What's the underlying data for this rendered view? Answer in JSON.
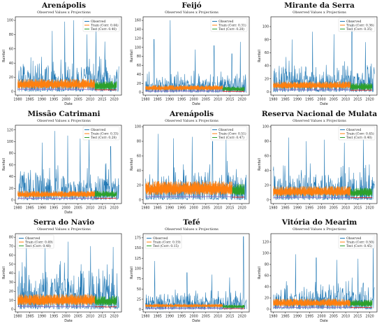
{
  "colors": {
    "observed": "#1f77b4",
    "train": "#ff7f0e",
    "test": "#2ca02c",
    "train_projection": "#9467bd",
    "test_projection": "#d62728"
  },
  "chart_data": [
    {
      "type": "line",
      "title": "Arenápolis",
      "subtitle": "Observed Values x Projections",
      "xlabel": "Date",
      "ylabel": "Rainfall",
      "xlim": [
        1979,
        2023
      ],
      "ylim": [
        -5,
        105
      ],
      "yticks": [
        0,
        20,
        40,
        60,
        80,
        100
      ],
      "xticks": [
        1980,
        1985,
        1990,
        1995,
        2000,
        2005,
        2010,
        2015,
        2020
      ],
      "xtick_labels": [
        "1980",
        "1985",
        "1990",
        "1995",
        "2000",
        "2005",
        "2010",
        "2015",
        "2020"
      ],
      "split_year": 2012,
      "end_year": 2021,
      "legend": [
        "Observed",
        "Train  (Corr: 0.44)",
        "Test  (Corr: 0.40)"
      ],
      "legend_position": "top-right",
      "series": [
        {
          "name": "Observed",
          "typical_peak": 40,
          "max_peaks": [
            [
              1999.5,
              98
            ],
            [
              2003.2,
              100
            ],
            [
              1994.3,
              85
            ],
            [
              2008.7,
              80
            ],
            [
              2012.4,
              90
            ],
            [
              2016.1,
              70
            ]
          ]
        },
        {
          "name": "Train",
          "x": [
            1980,
            2012
          ],
          "level": 8,
          "band": 10
        },
        {
          "name": "Test",
          "x": [
            2012,
            2021
          ],
          "level": 6,
          "band": 9
        }
      ]
    },
    {
      "type": "line",
      "title": "Feijó",
      "subtitle": "Observed Values x Projections",
      "xlabel": "Date",
      "ylabel": "Rainfall",
      "xlim": [
        1979,
        2023
      ],
      "ylim": [
        -6,
        168
      ],
      "yticks": [
        0,
        20,
        40,
        60,
        80,
        100,
        120,
        140,
        160
      ],
      "xticks": [
        1980,
        1985,
        1990,
        1995,
        2000,
        2005,
        2010,
        2015,
        2020
      ],
      "xtick_labels": [
        "1980",
        "1985",
        "1990",
        "1995",
        "2000",
        "2005",
        "2010",
        "2015",
        "2020"
      ],
      "split_year": 2012,
      "end_year": 2021,
      "legend": [
        "Observed",
        "Train  (Corr: 0.31)",
        "Test  (Corr: 0.28)"
      ],
      "legend_position": "top-right",
      "series": [
        {
          "name": "Observed",
          "typical_peak": 42,
          "max_peaks": [
            [
              1990.2,
              160
            ],
            [
              1983.5,
              118
            ],
            [
              2000.6,
              95
            ],
            [
              2008.4,
              104
            ],
            [
              2015.8,
              86
            ],
            [
              2019.3,
              112
            ]
          ]
        },
        {
          "name": "Train",
          "x": [
            1980,
            2012
          ],
          "level": 8,
          "band": 8
        },
        {
          "name": "Test",
          "x": [
            2012,
            2021
          ],
          "level": 6,
          "band": 7
        }
      ]
    },
    {
      "type": "line",
      "title": "Mirante da Serra",
      "subtitle": "Observed Values x Projections",
      "xlabel": "Date",
      "ylabel": "Rainfall",
      "xlim": [
        1979,
        2023
      ],
      "ylim": [
        -5,
        115
      ],
      "yticks": [
        0,
        20,
        40,
        60,
        80,
        100
      ],
      "xticks": [
        1980,
        1985,
        1990,
        1995,
        2000,
        2005,
        2010,
        2015,
        2020
      ],
      "xtick_labels": [
        "1980",
        "1985",
        "1990",
        "1995",
        "2000",
        "2005",
        "2010",
        "2015",
        "2020"
      ],
      "split_year": 2012,
      "end_year": 2021,
      "legend": [
        "Observed",
        "Train  (Corr: 0.36)",
        "Test  (Corr: 0.35)"
      ],
      "legend_position": "top-right",
      "series": [
        {
          "name": "Observed",
          "typical_peak": 42,
          "max_peaks": [
            [
              2012.6,
              110
            ],
            [
              1996.3,
              92
            ],
            [
              2005.1,
              88
            ],
            [
              1987.8,
              80
            ],
            [
              2018.2,
              76
            ]
          ]
        },
        {
          "name": "Train",
          "x": [
            1980,
            2012
          ],
          "level": 8,
          "band": 8
        },
        {
          "name": "Test",
          "x": [
            2012,
            2021
          ],
          "level": 6,
          "band": 8
        }
      ]
    },
    {
      "type": "line",
      "title": "Missão Catrimani",
      "subtitle": "Observed Values x Projections",
      "xlabel": "Date",
      "ylabel": "Rainfall",
      "xlim": [
        1979,
        2023
      ],
      "ylim": [
        -6,
        128
      ],
      "yticks": [
        0,
        20,
        40,
        60,
        80,
        100,
        120
      ],
      "xticks": [
        1980,
        1985,
        1990,
        1995,
        2000,
        2005,
        2010,
        2015,
        2020
      ],
      "xtick_labels": [
        "1980",
        "1985",
        "1990",
        "1995",
        "2000",
        "2005",
        "2010",
        "2015",
        "2020"
      ],
      "split_year": 2012,
      "end_year": 2021,
      "legend": [
        "Observed",
        "Train  (Corr: 0.33)",
        "Test  (Corr: 0.28)"
      ],
      "legend_position": "top-right",
      "series": [
        {
          "name": "Observed",
          "typical_peak": 50,
          "max_peaks": [
            [
              1995.4,
              118
            ],
            [
              2000.7,
              110
            ],
            [
              2005.9,
              105
            ],
            [
              2009.6,
              112
            ],
            [
              1990.1,
              98
            ],
            [
              2018.5,
              92
            ]
          ]
        },
        {
          "name": "Train",
          "x": [
            1980,
            2012
          ],
          "level": 8,
          "band": 8
        },
        {
          "name": "Test",
          "x": [
            2012,
            2021
          ],
          "level": 8,
          "band": 8
        }
      ]
    },
    {
      "type": "line",
      "title": "Arenápolis",
      "subtitle": "Observed Values x Projections",
      "xlabel": "",
      "ylabel": "Rainfall",
      "xlim": [
        1979,
        2023
      ],
      "ylim": [
        -5,
        102
      ],
      "yticks": [
        0,
        20,
        40,
        60,
        80,
        100
      ],
      "xticks": [
        1980,
        1985,
        1990,
        1995,
        2000,
        2005,
        2010,
        2015,
        2020
      ],
      "xtick_labels": [
        "1980",
        "1985",
        "1990",
        "1995",
        "2000",
        "2005",
        "2010",
        "2015",
        "2020"
      ],
      "split_year": 2016,
      "end_year": 2021,
      "legend": [
        "Observed",
        "Train  (Corr: 0.51)",
        "Test  (Corr: 0.47)"
      ],
      "legend_position": "top-right",
      "series": [
        {
          "name": "Observed",
          "typical_peak": 42,
          "max_peaks": [
            [
              1985.2,
              90
            ],
            [
              1991.6,
              84
            ],
            [
              1999.3,
              86
            ],
            [
              2007.8,
              80
            ],
            [
              2013.4,
              82
            ]
          ]
        },
        {
          "name": "Train",
          "x": [
            1980,
            2016
          ],
          "level": 12,
          "band": 14
        },
        {
          "name": "Test",
          "x": [
            2016,
            2021
          ],
          "level": 10,
          "band": 12
        }
      ]
    },
    {
      "type": "line",
      "title": "Reserva Nacional de Mulata",
      "subtitle": "Observed Values x Projections",
      "xlabel": "",
      "ylabel": "Rainfall",
      "xlim": [
        1979,
        2023
      ],
      "ylim": [
        -5,
        102
      ],
      "yticks": [
        0,
        20,
        40,
        60,
        80,
        100
      ],
      "xticks": [
        1980,
        1985,
        1990,
        1995,
        2000,
        2005,
        2010,
        2015,
        2020
      ],
      "xtick_labels": [
        "1980",
        "1985",
        "1990",
        "1995",
        "2000",
        "2005",
        "2010",
        "2015",
        "2020"
      ],
      "split_year": 2012,
      "end_year": 2021,
      "legend": [
        "Observed",
        "Train  (Corr: 0.45)",
        "Test  (Corr: 0.40)"
      ],
      "legend_position": "top-right",
      "series": [
        {
          "name": "Observed",
          "typical_peak": 40,
          "max_peaks": [
            [
              1986.4,
              85
            ],
            [
              1993.7,
              80
            ],
            [
              2001.2,
              82
            ],
            [
              2009.5,
              78
            ],
            [
              2017.3,
              84
            ]
          ]
        },
        {
          "name": "Train",
          "x": [
            1980,
            2012
          ],
          "level": 9,
          "band": 10
        },
        {
          "name": "Test",
          "x": [
            2012,
            2021
          ],
          "level": 8,
          "band": 9
        }
      ]
    },
    {
      "type": "line",
      "title": "Serra do Navio",
      "subtitle": "Observed Values x Projections",
      "xlabel": "Date",
      "ylabel": "Rainfall",
      "xlim": [
        1979,
        2023
      ],
      "ylim": [
        -3,
        84
      ],
      "yticks": [
        0,
        10,
        20,
        30,
        40,
        50,
        60,
        70,
        80
      ],
      "xticks": [
        1980,
        1985,
        1990,
        1995,
        2000,
        2005,
        2010,
        2015,
        2020
      ],
      "xtick_labels": [
        "1980",
        "1985",
        "1990",
        "1995",
        "2000",
        "2005",
        "2010",
        "2015",
        "2020"
      ],
      "split_year": 2012,
      "end_year": 2021,
      "legend": [
        "Observed",
        "Train  (Corr: 0.49)",
        "Test  (Corr: 0.48)"
      ],
      "legend_position": "top-left",
      "series": [
        {
          "name": "Observed",
          "typical_peak": 44,
          "max_peaks": [
            [
              1983.6,
              78
            ],
            [
              1991.3,
              72
            ],
            [
              2000.8,
              75
            ],
            [
              2010.2,
              70
            ],
            [
              2019.6,
              69
            ]
          ]
        },
        {
          "name": "Train",
          "x": [
            1980,
            2012
          ],
          "level": 8,
          "band": 9
        },
        {
          "name": "Test",
          "x": [
            2012,
            2021
          ],
          "level": 7,
          "band": 8
        }
      ]
    },
    {
      "type": "line",
      "title": "Tefé",
      "subtitle": "Observed Values x Projections",
      "xlabel": "Date",
      "ylabel": "Rainfall",
      "xlim": [
        1979,
        2023
      ],
      "ylim": [
        -6,
        185
      ],
      "yticks": [
        0,
        25,
        50,
        75,
        100,
        125,
        150,
        175
      ],
      "xticks": [
        1980,
        1985,
        1990,
        1995,
        2000,
        2005,
        2010,
        2015,
        2020
      ],
      "xtick_labels": [
        "1980",
        "1985",
        "1990",
        "1995",
        "2000",
        "2005",
        "2010",
        "2015",
        "2020"
      ],
      "split_year": 2012,
      "end_year": 2021,
      "legend": [
        "Observed",
        "Train  (Corr: 0.19)",
        "Test  (Corr: 0.15)"
      ],
      "legend_position": "top-left",
      "series": [
        {
          "name": "Observed",
          "typical_peak": 42,
          "max_peaks": [
            [
              2020.6,
              178
            ],
            [
              1983.8,
              118
            ],
            [
              1997.2,
              90
            ],
            [
              2007.5,
              85
            ],
            [
              2014.9,
              78
            ]
          ]
        },
        {
          "name": "Train",
          "x": [
            1980,
            2012
          ],
          "level": 8,
          "band": 6
        },
        {
          "name": "Test",
          "x": [
            2012,
            2021
          ],
          "level": 6,
          "band": 6
        }
      ]
    },
    {
      "type": "line",
      "title": "Vitória do Mearim",
      "subtitle": "Observed Values x Projections",
      "xlabel": "Date",
      "ylabel": "Rainfall",
      "xlim": [
        1979,
        2023
      ],
      "ylim": [
        -5,
        135
      ],
      "yticks": [
        0,
        20,
        40,
        60,
        80,
        100,
        120
      ],
      "xticks": [
        1980,
        1985,
        1990,
        1995,
        2000,
        2005,
        2010,
        2015,
        2020
      ],
      "xtick_labels": [
        "1980",
        "1985",
        "1990",
        "1995",
        "2000",
        "2005",
        "2010",
        "2015",
        "2020"
      ],
      "split_year": 2012,
      "end_year": 2021,
      "legend": [
        "Observed",
        "Train  (Corr: 0.50)",
        "Test  (Corr: 0.45)"
      ],
      "legend_position": "top-right",
      "series": [
        {
          "name": "Observed",
          "typical_peak": 46,
          "max_peaks": [
            [
              2021.4,
              130
            ],
            [
              1989.2,
              98
            ],
            [
              1997.8,
              92
            ],
            [
              2006.4,
              88
            ],
            [
              2015.1,
              90
            ]
          ]
        },
        {
          "name": "Train",
          "x": [
            1980,
            2012
          ],
          "level": 9,
          "band": 10
        },
        {
          "name": "Test",
          "x": [
            2012,
            2021
          ],
          "level": 8,
          "band": 9
        }
      ]
    }
  ]
}
